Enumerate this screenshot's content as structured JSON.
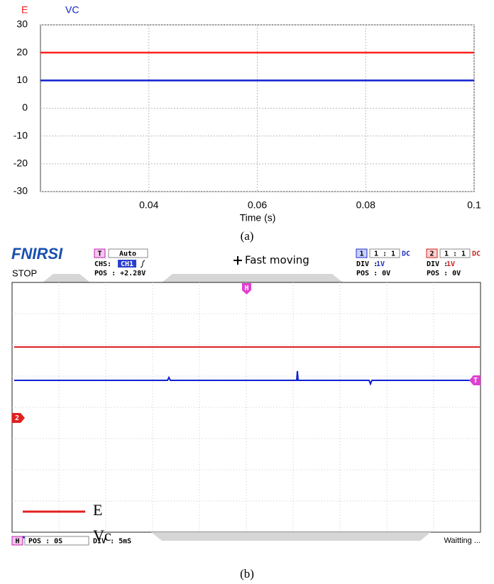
{
  "chart_data": {
    "type": "line",
    "x": [
      0.02,
      0.1
    ],
    "series": [
      {
        "name": "E",
        "color": "#ff2020",
        "values": [
          20,
          20
        ]
      },
      {
        "name": "VC",
        "color": "#1020d0",
        "values": [
          10,
          10
        ]
      }
    ],
    "xlabel": "Time (s)",
    "xlim": [
      0.02,
      0.1
    ],
    "xticks": [
      0.04,
      0.06,
      0.08,
      0.1
    ],
    "ylim": [
      -30,
      30
    ],
    "yticks": [
      -30,
      -20,
      -10,
      0,
      10,
      20,
      30
    ],
    "grid": true,
    "legend": "top-left",
    "caption": "(a)"
  },
  "scope": {
    "brand": "FNIRSI",
    "status": "STOP",
    "mode_title": "Fast moving",
    "trigger": {
      "badge": "T",
      "mode": "Auto",
      "source_label": "CHS:",
      "source": "CH1",
      "pos": "POS : +2.28V"
    },
    "ch1": {
      "badge": "1",
      "probe": "1 : 1",
      "coupling": "DC",
      "div_label": "DIV :",
      "div": "1V",
      "pos": "POS : 0V"
    },
    "ch2": {
      "badge": "2",
      "probe": "1 : 1",
      "coupling": "DC",
      "div_label": "DIV :",
      "div": "1V",
      "pos": "POS : 0V"
    },
    "markers": {
      "h": "H",
      "t": "T",
      "ch2": "2"
    },
    "legend": [
      "E",
      "Vc"
    ],
    "footer": {
      "badge": "H",
      "pos": "POS : 0S",
      "div": "DIV : 5mS",
      "status": "Waitting ..."
    },
    "caption": "(b)"
  }
}
